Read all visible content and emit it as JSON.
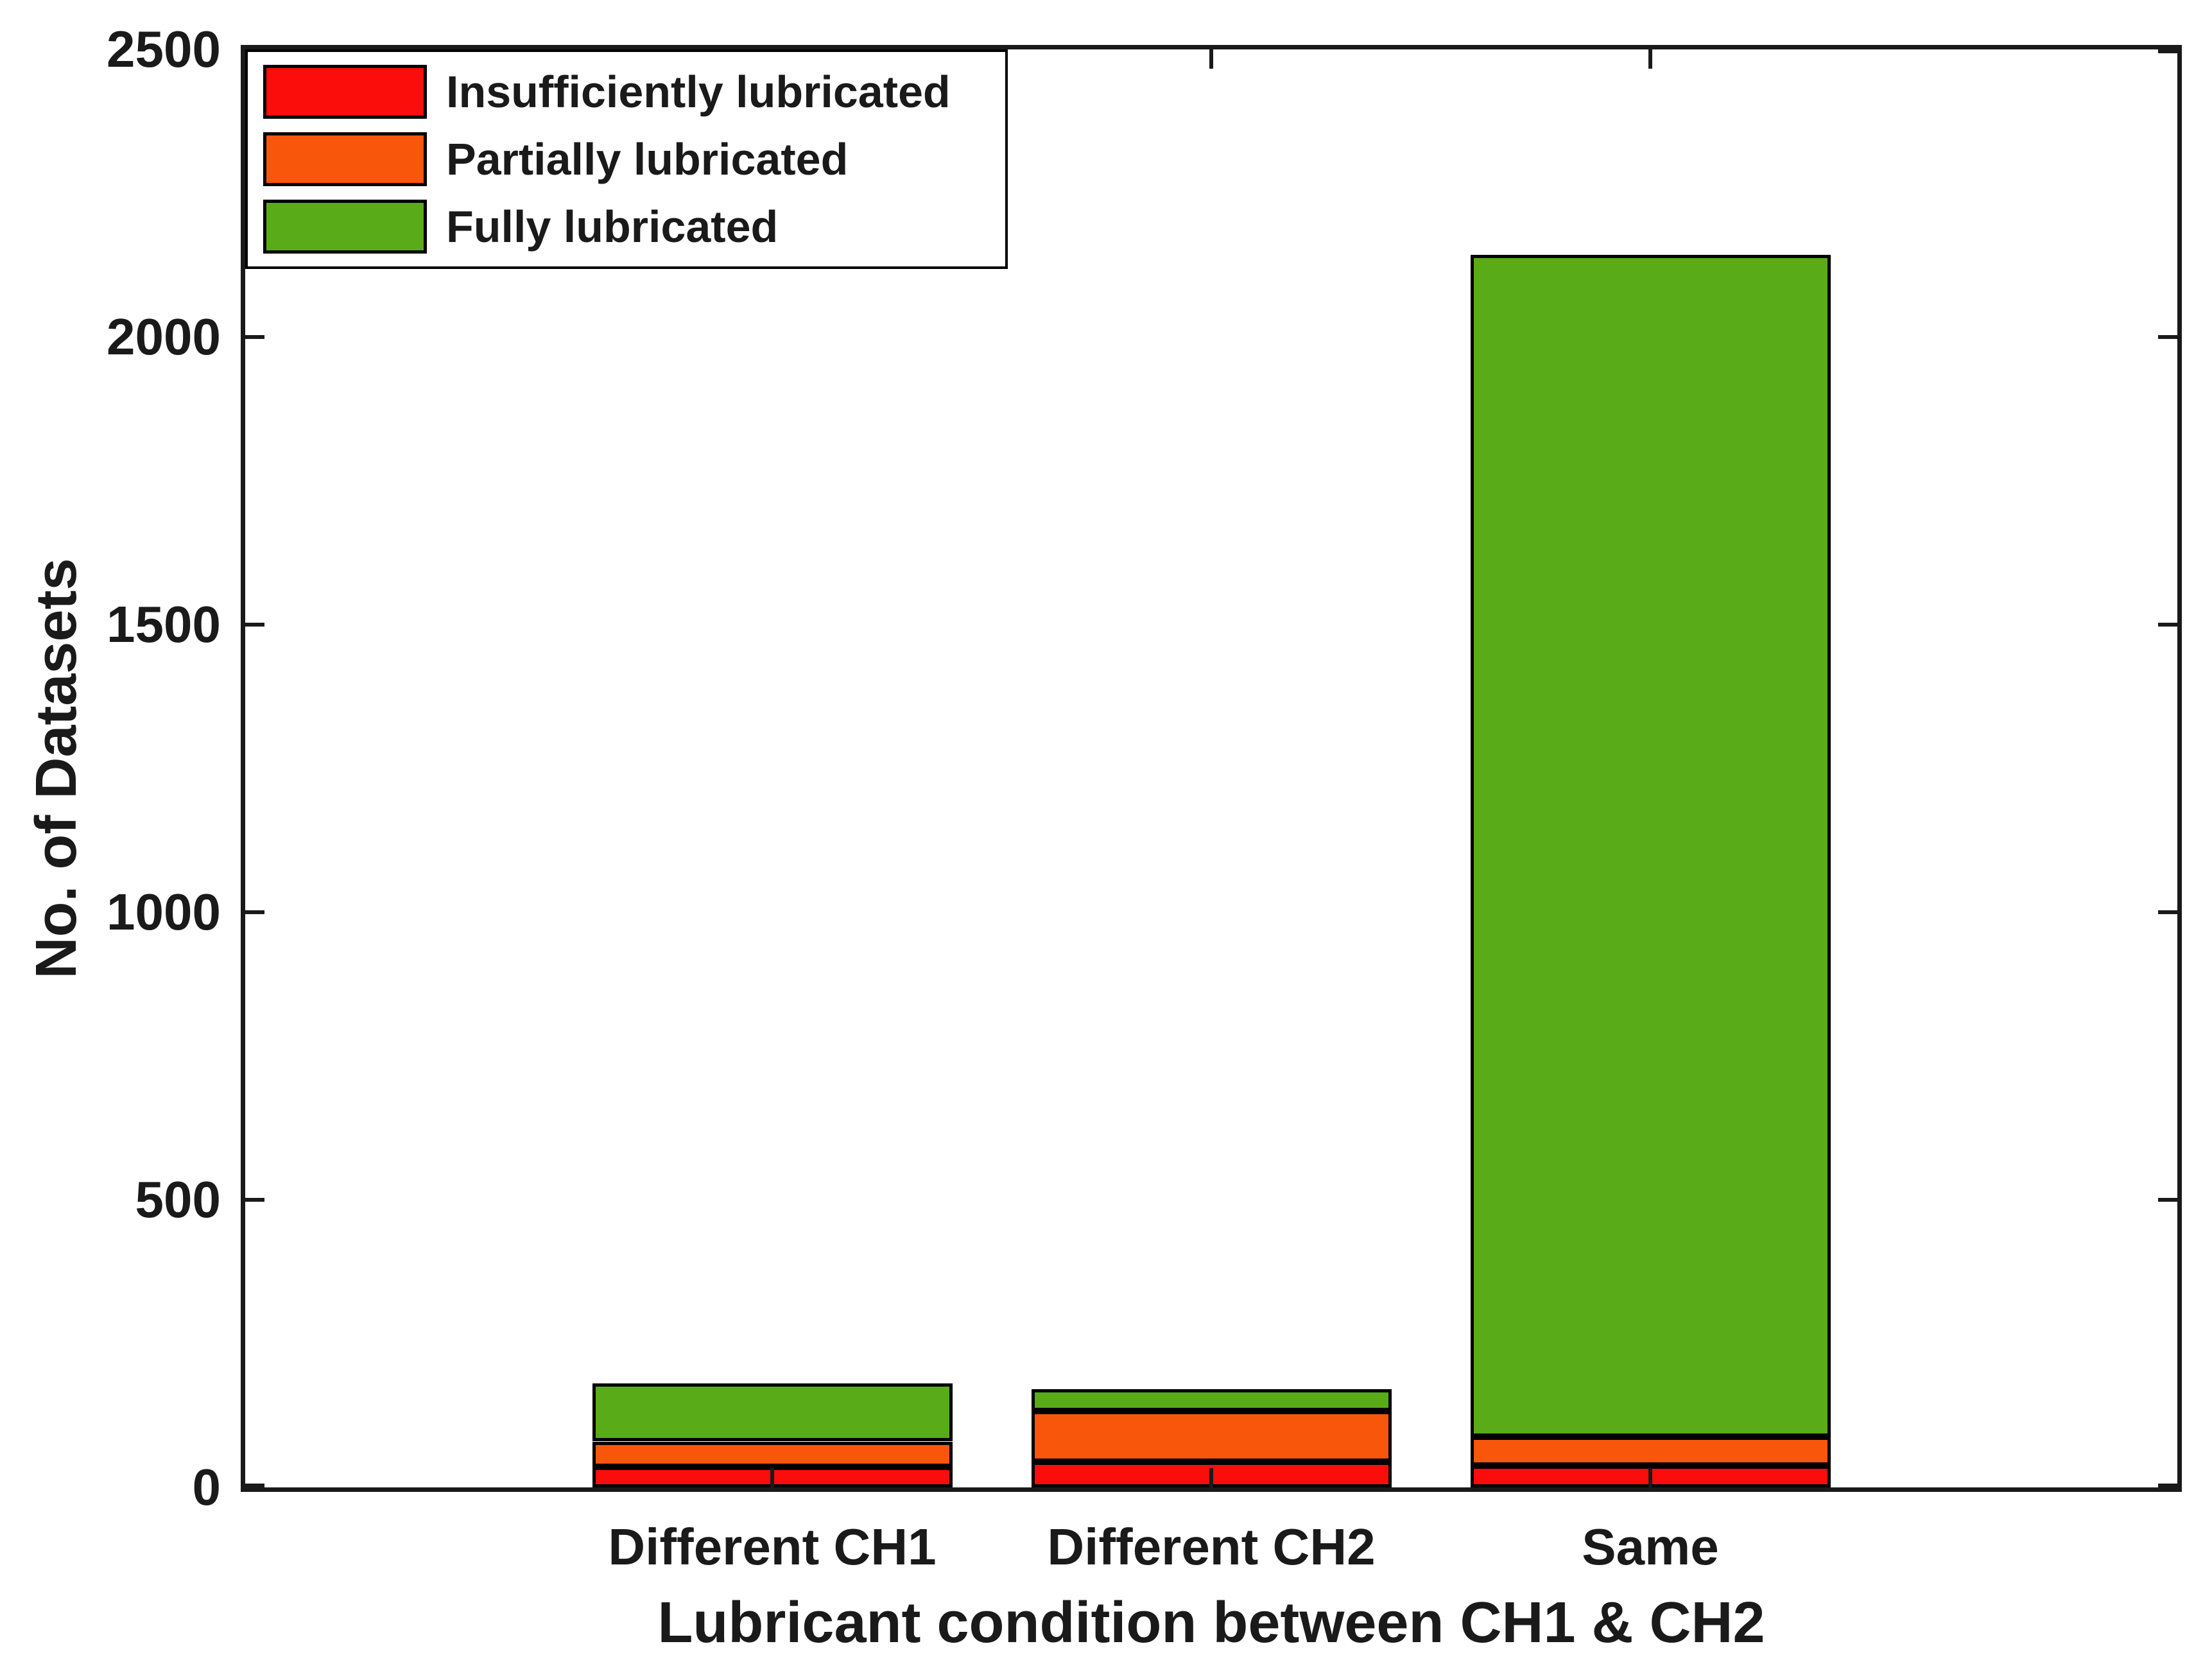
{
  "figure": {
    "background": "#FFFFFF",
    "axis_color": "#1A1A1A",
    "text_color": "#1A1A1A"
  },
  "chart_data": {
    "type": "bar",
    "stacked": true,
    "categories": [
      "Different CH1",
      "Different CH2",
      "Same"
    ],
    "series": [
      {
        "name": "Insufficiently lubricated",
        "color": "#FA0D0A",
        "values": [
          36,
          45,
          38
        ]
      },
      {
        "name": "Partially lubricated",
        "color": "#F8560B",
        "values": [
          44,
          88,
          50
        ]
      },
      {
        "name": "Fully lubricated",
        "color": "#59AC18",
        "values": [
          100,
          38,
          2055
        ]
      }
    ],
    "totals": [
      180,
      171,
      2143
    ],
    "xlabel": "Lubricant condition between CH1 & CH2",
    "ylabel": "No. of Datasets",
    "ylim": [
      0,
      2500
    ],
    "yticks": [
      0,
      500,
      1000,
      1500,
      2000,
      2500
    ],
    "grid": false,
    "legend_position": "top-left",
    "bar_edge_color": "#000000"
  }
}
